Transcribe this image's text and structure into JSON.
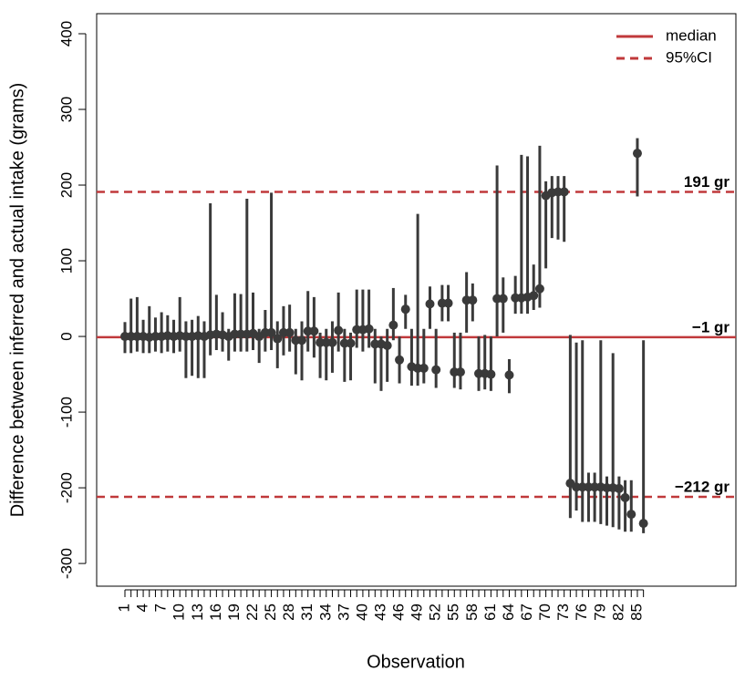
{
  "chart_data": {
    "type": "errorbar",
    "xlabel": "Observation",
    "ylabel": "Difference between inferred and actual intake (grams)",
    "categories": [
      "1",
      null,
      null,
      "4",
      null,
      null,
      "7",
      null,
      null,
      "10",
      null,
      null,
      "13",
      null,
      null,
      "16",
      null,
      null,
      "19",
      null,
      null,
      "22",
      null,
      null,
      "25",
      null,
      null,
      "28",
      null,
      null,
      "31",
      null,
      null,
      "34",
      null,
      null,
      "37",
      null,
      null,
      "40",
      null,
      null,
      "43",
      null,
      null,
      "46",
      null,
      null,
      "49",
      null,
      null,
      "52",
      null,
      null,
      "55",
      null,
      null,
      "58",
      null,
      null,
      "61",
      null,
      null,
      "64",
      null,
      null,
      "67",
      null,
      null,
      "70",
      null,
      null,
      "73",
      null,
      null,
      "76",
      null,
      null,
      "79",
      null,
      null,
      "82",
      null,
      null,
      "85",
      null
    ],
    "series": [
      {
        "color": "#3a3a3a",
        "values": [
          0,
          0,
          0,
          0,
          -1,
          0,
          0,
          1,
          0,
          1,
          0,
          0,
          1,
          0,
          2,
          3,
          2,
          0,
          3,
          3,
          3,
          4,
          0,
          5,
          5,
          -3,
          5,
          5,
          -5,
          -5,
          7,
          7,
          -8,
          -8,
          -8,
          8,
          -9,
          -9,
          9,
          9,
          10,
          -10,
          -10,
          -12,
          15,
          -31,
          36,
          -40,
          -42,
          -42,
          43,
          -44,
          44,
          44,
          -47,
          -47,
          48,
          48,
          -49,
          -49,
          -50,
          50,
          50,
          -51,
          51,
          51,
          52,
          54,
          63,
          186,
          190,
          191,
          191,
          -194,
          -199,
          -199,
          -199,
          -199,
          -199,
          -200,
          -200,
          -201,
          -213,
          -235,
          242,
          -247
        ],
        "lower": [
          -22,
          -22,
          -20,
          -22,
          -22,
          -20,
          -22,
          -20,
          -22,
          -20,
          -55,
          -52,
          -55,
          -55,
          -25,
          -18,
          -20,
          -32,
          -20,
          -20,
          -20,
          -18,
          -35,
          -20,
          -18,
          -42,
          -25,
          -20,
          -50,
          -58,
          -20,
          -28,
          -55,
          -58,
          -48,
          -20,
          -60,
          -58,
          -15,
          -20,
          -15,
          -62,
          -72,
          -60,
          -5,
          -62,
          10,
          -65,
          -65,
          -62,
          10,
          -68,
          20,
          20,
          -68,
          -70,
          5,
          20,
          -72,
          -70,
          -72,
          0,
          5,
          -75,
          30,
          30,
          30,
          35,
          38,
          90,
          130,
          128,
          125,
          -240,
          -230,
          -245,
          -245,
          -245,
          -248,
          -250,
          -252,
          -255,
          -258,
          -258,
          185,
          -260
        ],
        "upper": [
          19,
          50,
          52,
          22,
          40,
          25,
          32,
          28,
          22,
          52,
          20,
          22,
          27,
          20,
          176,
          55,
          32,
          10,
          57,
          56,
          182,
          58,
          10,
          35,
          190,
          20,
          40,
          42,
          10,
          20,
          60,
          52,
          5,
          10,
          20,
          58,
          10,
          5,
          62,
          62,
          62,
          10,
          0,
          10,
          64,
          0,
          55,
          10,
          162,
          10,
          66,
          10,
          68,
          68,
          5,
          5,
          85,
          70,
          0,
          2,
          0,
          226,
          78,
          -30,
          80,
          240,
          238,
          95,
          252,
          205,
          212,
          212,
          212,
          2,
          -8,
          -5,
          -180,
          -180,
          -5,
          -185,
          -22,
          -185,
          -190,
          -190,
          262,
          -5
        ]
      }
    ],
    "reference_color": "#c0393b",
    "reference_lines": [
      {
        "value": 191,
        "label": "191 gr",
        "style": "dashed"
      },
      {
        "value": -1,
        "label": "−1 gr",
        "style": "solid"
      },
      {
        "value": -212,
        "label": "−212 gr",
        "style": "dashed"
      }
    ],
    "legend": [
      {
        "name": "median",
        "style": "solid"
      },
      {
        "name": "95%CI",
        "style": "dashed"
      }
    ],
    "legend_position": "upper right",
    "ylim": [
      -330,
      426.5
    ],
    "yticks": [
      -300,
      -200,
      -100,
      0,
      100,
      200,
      300,
      400
    ]
  }
}
